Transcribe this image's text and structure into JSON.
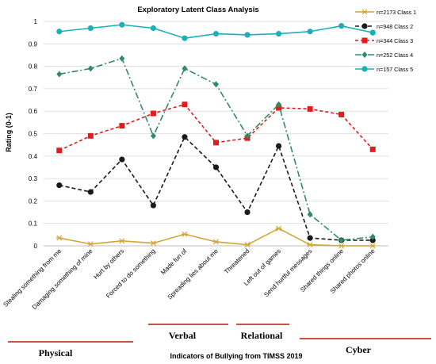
{
  "chart_data": {
    "type": "line",
    "title": "Exploratory Latent Class Analysis",
    "xlabel": "Indicators of Bullying from TIMSS 2019",
    "ylabel": "Rating (0-1)",
    "ylim": [
      0,
      1
    ],
    "yticks": [
      "0",
      "0.1",
      "0.2",
      "0.3",
      "0.4",
      "0.5",
      "0.6",
      "0.7",
      "0.8",
      "0.9",
      "1"
    ],
    "categories": [
      "Stealing something from me",
      "Damaging something of mine",
      "Hurt by others",
      "Forced to do something",
      "Made fun of",
      "Spreading lies about me",
      "Threatened",
      "Left out of games",
      "Send hurtful messages",
      "Shared things online",
      "Shared photos online"
    ],
    "series": [
      {
        "name": "n=2173 Class 1",
        "color": "#d4a437",
        "dash": "",
        "marker": "star",
        "values": [
          0.035,
          0.008,
          0.022,
          0.012,
          0.052,
          0.018,
          0.005,
          0.077,
          0.005,
          0.0,
          0.0
        ]
      },
      {
        "name": "n=948 Class 2",
        "color": "#1a1a1a",
        "dash": "5,3",
        "marker": "circle",
        "values": [
          0.27,
          0.24,
          0.385,
          0.18,
          0.485,
          0.35,
          0.15,
          0.445,
          0.035,
          0.025,
          0.025
        ]
      },
      {
        "name": "n=344 Class 3",
        "color": "#e21b1b",
        "dash": "4,3",
        "marker": "square",
        "values": [
          0.425,
          0.49,
          0.535,
          0.59,
          0.63,
          0.46,
          0.48,
          0.615,
          0.61,
          0.585,
          0.43
        ]
      },
      {
        "name": "n=252 Class 4",
        "color": "#2e8b63",
        "dash": "8,3,2,3",
        "marker": "diamond",
        "values": [
          0.765,
          0.79,
          0.835,
          0.49,
          0.79,
          0.72,
          0.49,
          0.63,
          0.14,
          0.025,
          0.04
        ]
      },
      {
        "name": "n=157 Class 5",
        "color": "#1ab0b8",
        "dash": "",
        "marker": "circle",
        "values": [
          0.955,
          0.97,
          0.985,
          0.97,
          0.925,
          0.945,
          0.94,
          0.945,
          0.955,
          0.98,
          0.95
        ]
      }
    ],
    "groups": [
      {
        "label": "Physical",
        "color": "#c0392b"
      },
      {
        "label": "Verbal",
        "color": "#c0392b"
      },
      {
        "label": "Relational",
        "color": "#c0392b"
      },
      {
        "label": "Cyber",
        "color": "#c0392b"
      }
    ],
    "grid": true,
    "legend_position": "top-right"
  }
}
